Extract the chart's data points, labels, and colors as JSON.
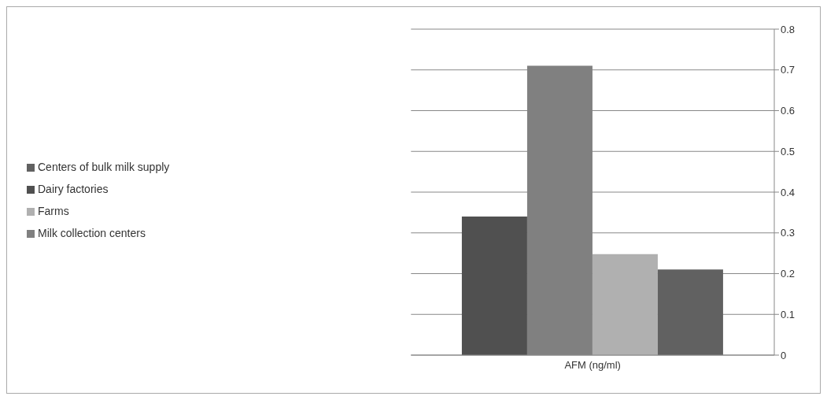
{
  "chart_data": {
    "type": "bar",
    "categories": [
      "AFM (ng/ml)"
    ],
    "series": [
      {
        "name": "Dairy factories",
        "color": "#505050",
        "values": [
          0.34
        ]
      },
      {
        "name": "Milk collection centers",
        "color": "#808080",
        "values": [
          0.71
        ]
      },
      {
        "name": "Farms",
        "color": "#b0b0b0",
        "values": [
          0.248
        ]
      },
      {
        "name": "Centers of bulk milk supply",
        "color": "#616161",
        "values": [
          0.21
        ]
      }
    ],
    "ylim": [
      0,
      0.8
    ],
    "yticks": [
      0,
      0.1,
      0.2,
      0.3,
      0.4,
      0.5,
      0.6,
      0.7,
      0.8
    ],
    "grid": "y",
    "legend": "left"
  }
}
